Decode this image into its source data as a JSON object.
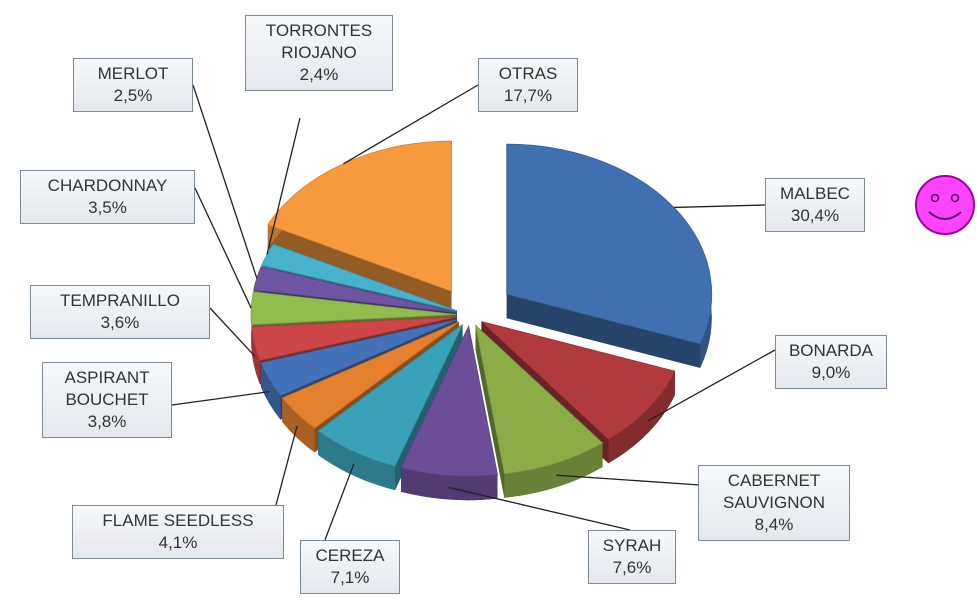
{
  "chart_data": {
    "type": "pie",
    "categories": [
      "MALBEC",
      "BONARDA",
      "CABERNET SAUVIGNON",
      "SYRAH",
      "CEREZA",
      "FLAME SEEDLESS",
      "ASPIRANT BOUCHET",
      "TEMPRANILLO",
      "CHARDONNAY",
      "MERLOT",
      "TORRONTES RIOJANO",
      "OTRAS"
    ],
    "values": [
      30.4,
      9.0,
      8.4,
      7.6,
      7.1,
      4.1,
      3.8,
      3.6,
      3.5,
      2.5,
      2.4,
      17.7
    ],
    "value_labels": [
      "30,4%",
      "9,0%",
      "8,4%",
      "7,6%",
      "7,1%",
      "4,1%",
      "3,8%",
      "3,6%",
      "3,5%",
      "2,5%",
      "2,4%",
      "17,7%"
    ],
    "colors": [
      "#4070b0",
      "#b03a3c",
      "#8cac48",
      "#6c4e98",
      "#3aa2b8",
      "#e4802e",
      "#4472b8",
      "#cc4646",
      "#92bc4e",
      "#7054a4",
      "#48b2cc",
      "#f79a3e"
    ]
  }
}
